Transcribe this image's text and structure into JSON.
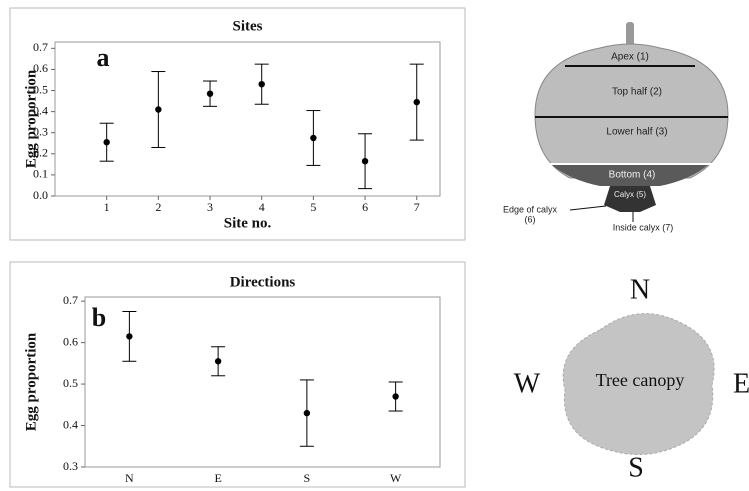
{
  "chart_data": [
    {
      "type": "errorbar",
      "title": "Sites",
      "panel_label": "a",
      "x_label": "Site no.",
      "y_label": "Egg proportion",
      "x": [
        1,
        2,
        3,
        4,
        5,
        6,
        7
      ],
      "xlim": [
        0,
        7.45
      ],
      "xticks": [
        1,
        2,
        3,
        4,
        5,
        6,
        7
      ],
      "values": [
        0.255,
        0.41,
        0.485,
        0.53,
        0.275,
        0.165,
        0.445
      ],
      "errors": [
        0.09,
        0.18,
        0.06,
        0.095,
        0.13,
        0.13,
        0.18
      ],
      "ylim": [
        0,
        0.73
      ],
      "yticks": [
        {
          "value": 0,
          "label": "0.0"
        },
        0.1,
        0.2,
        0.3,
        0.4,
        0.5,
        0.6,
        0.7
      ],
      "color": "#000000"
    },
    {
      "type": "errorbar",
      "title": "Directions",
      "panel_label": "b",
      "y_label": "Egg proportion",
      "categories": [
        "N",
        "E",
        "S",
        "W"
      ],
      "values": [
        0.615,
        0.555,
        0.43,
        0.47
      ],
      "errors": [
        0.06,
        0.035,
        0.08,
        0.035
      ],
      "ylim": [
        0.3,
        0.71
      ],
      "yticks": [
        0.3,
        0.4,
        0.5,
        0.6,
        0.7
      ],
      "color": "#000000"
    }
  ],
  "fruit_diagram": {
    "apex": "Apex (1)",
    "top_half": "Top half (2)",
    "lower_half": "Lower half (3)",
    "bottom": "Bottom (4)",
    "calyx": "Calyx (5)",
    "edge_of_calyx": [
      "Edge of calyx",
      "(6)"
    ],
    "inside_calyx": "Inside calyx (7)"
  },
  "canopy_diagram": {
    "north": "N",
    "south": "S",
    "west": "W",
    "east": "E",
    "label": "Tree canopy"
  }
}
